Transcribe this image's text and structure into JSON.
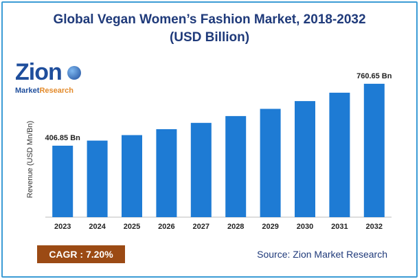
{
  "title_line1": "Global Vegan Women’s Fashion Market, 2018-2032",
  "title_line2": "(USD Billion)",
  "logo": {
    "name": "Zion",
    "tagline_main": "Market",
    "tagline_accent": "Research"
  },
  "cagr_label": "CAGR : 7.20%",
  "source": "Source: Zion Market Research",
  "colors": {
    "bar": "#1e7bd4",
    "title": "#1f3a7a",
    "cagr_bg": "#9b4a14",
    "border": "#3a9bd5"
  },
  "chart_data": {
    "type": "bar",
    "categories": [
      "2023",
      "2024",
      "2025",
      "2026",
      "2027",
      "2028",
      "2029",
      "2030",
      "2031",
      "2032"
    ],
    "values": [
      406.85,
      436.1,
      467.5,
      501.2,
      537.3,
      576.0,
      617.4,
      661.9,
      709.6,
      760.65
    ],
    "ylabel": "Revenue (USD Mn/Bn)",
    "xlabel": "",
    "data_labels": [
      {
        "index": 0,
        "text": "406.85 Bn"
      },
      {
        "index": 9,
        "text": "760.65 Bn"
      }
    ],
    "grid": false,
    "legend": "none"
  }
}
